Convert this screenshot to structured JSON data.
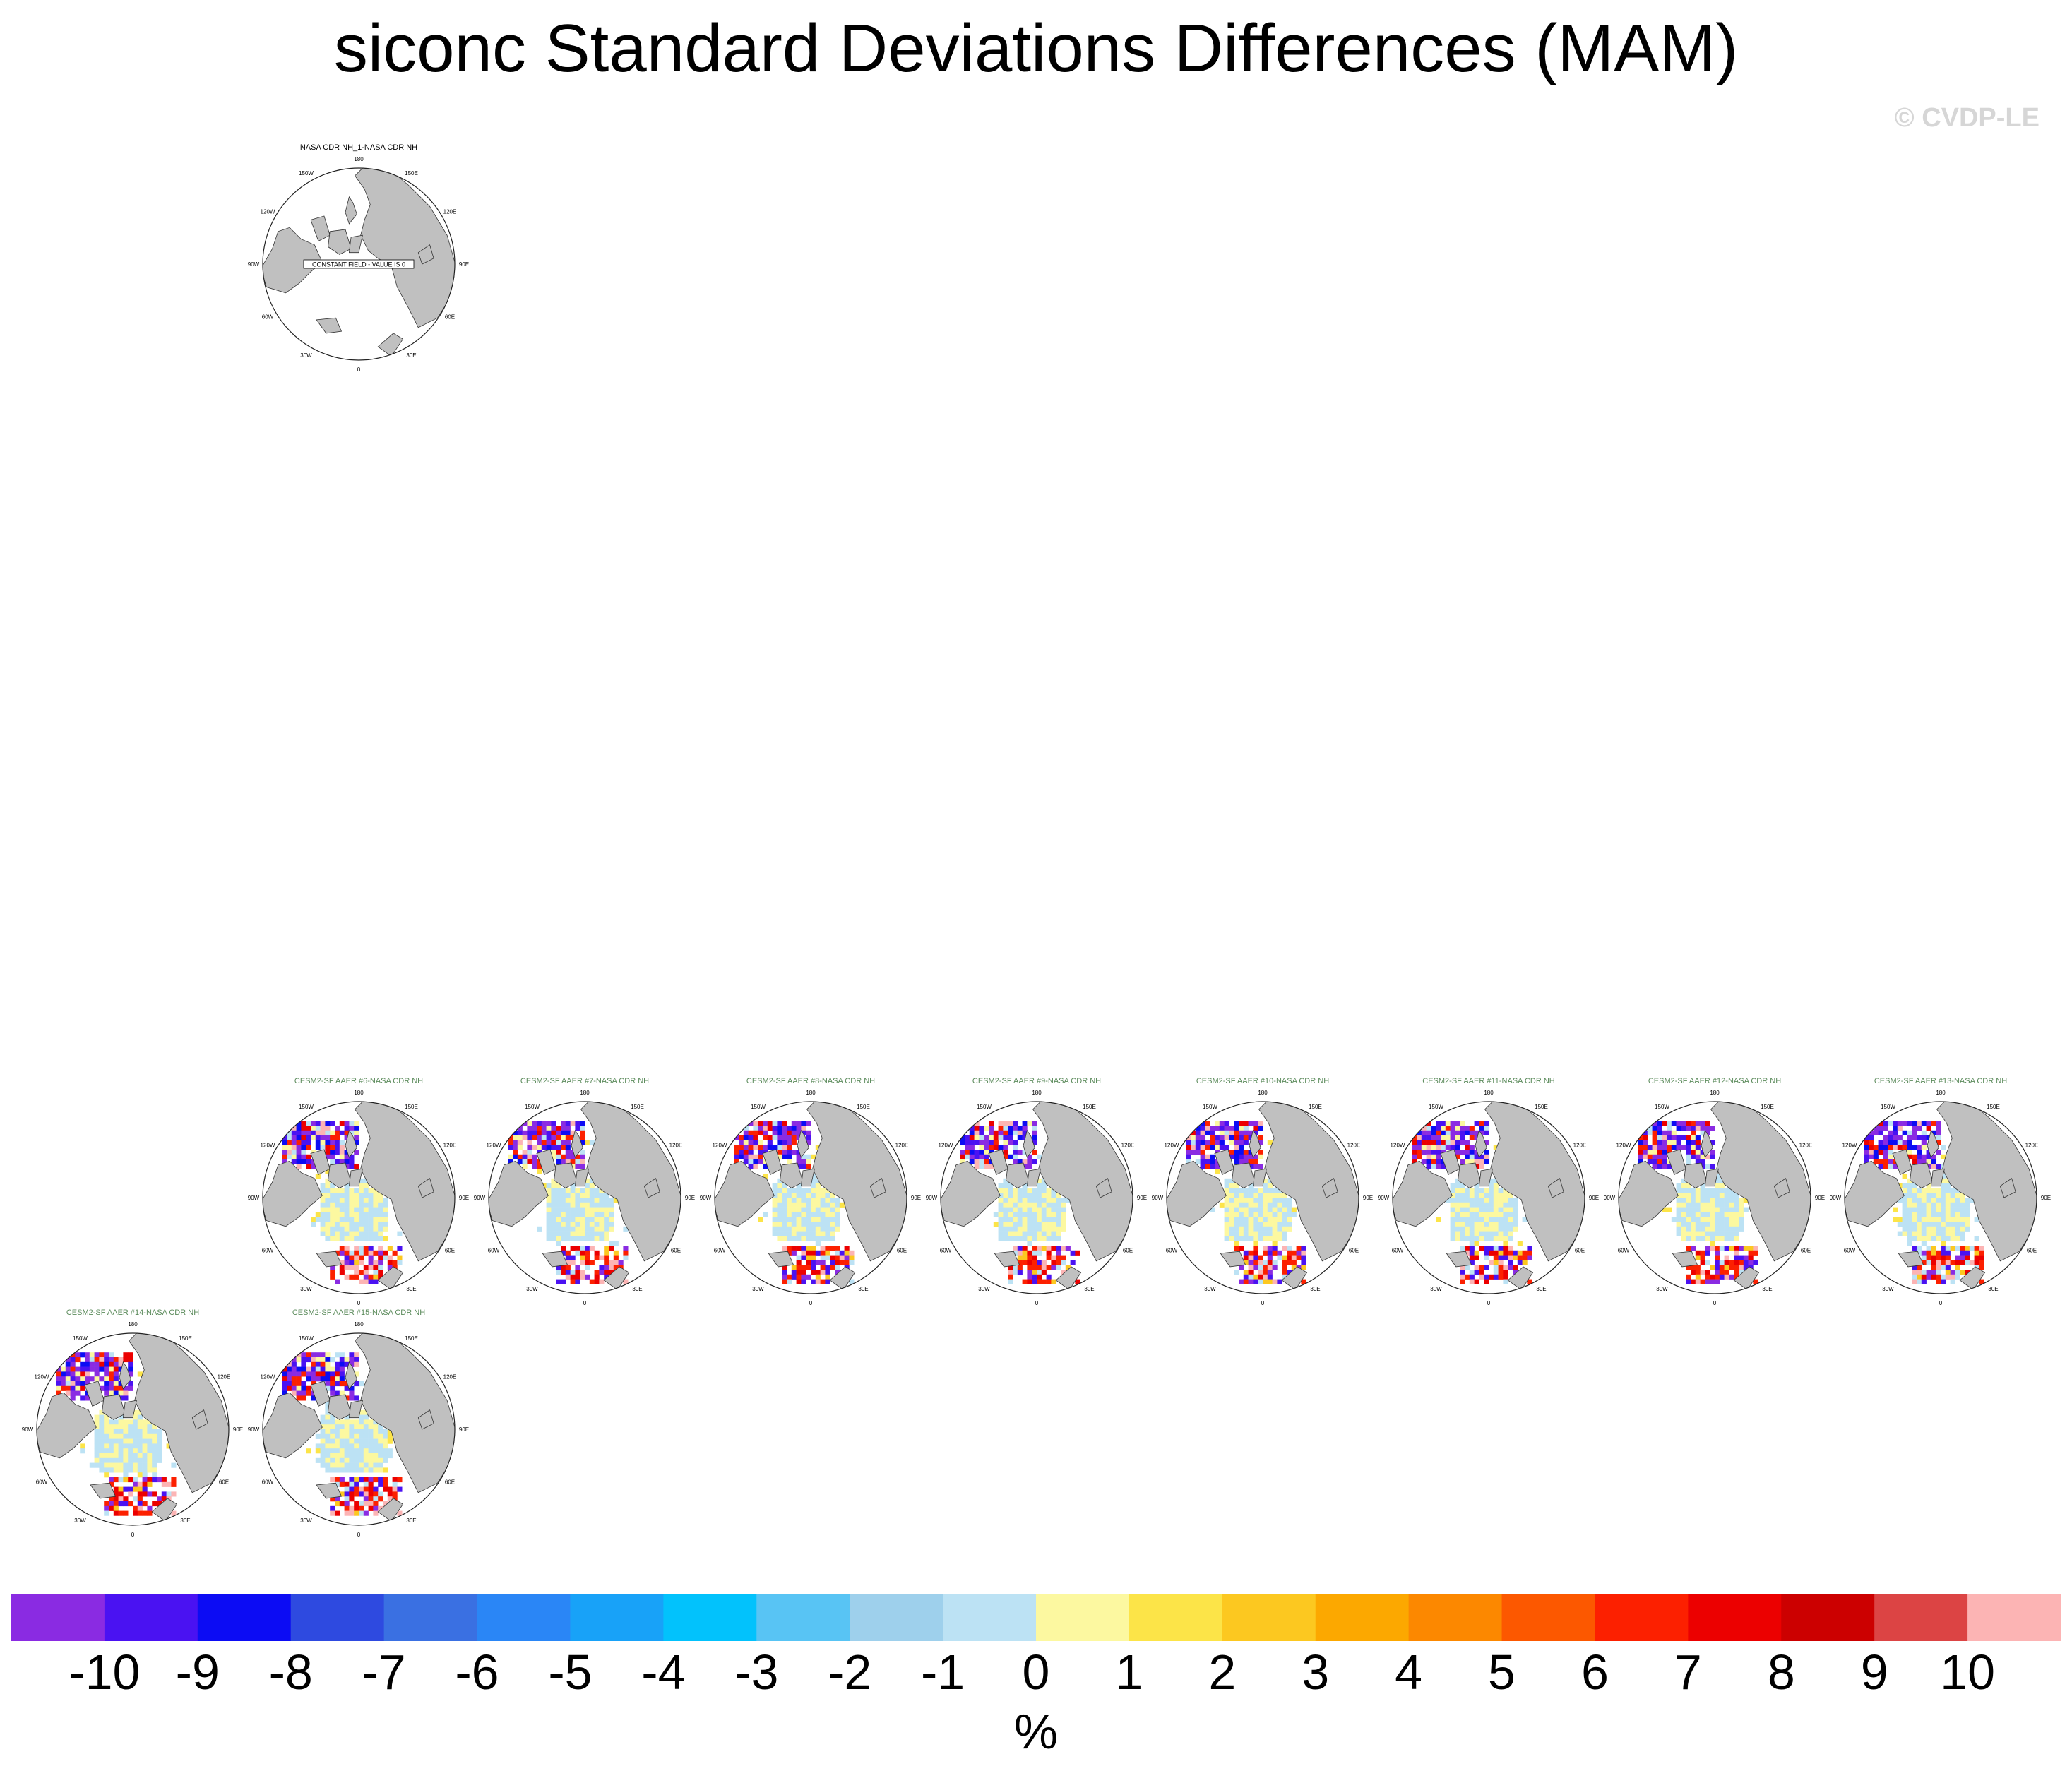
{
  "page": {
    "title": "siconc Standard Deviations Differences (MAM)",
    "copyright": "© CVDP-LE"
  },
  "panels": [
    {
      "title": "NASA CDR NH_1-NASA CDR NH",
      "note": "CONSTANT FIELD - VALUE IS 0",
      "title_color": "#000000",
      "field": "constant",
      "seed": 0
    },
    {
      "title": "CESM2-SF AAER #6-NASA CDR NH",
      "title_color": "#5a8a5a",
      "field": "diff",
      "seed": 6
    },
    {
      "title": "CESM2-SF AAER #7-NASA CDR NH",
      "title_color": "#5a8a5a",
      "field": "diff",
      "seed": 7
    },
    {
      "title": "CESM2-SF AAER #8-NASA CDR NH",
      "title_color": "#5a8a5a",
      "field": "diff",
      "seed": 8
    },
    {
      "title": "CESM2-SF AAER #9-NASA CDR NH",
      "title_color": "#5a8a5a",
      "field": "diff",
      "seed": 9
    },
    {
      "title": "CESM2-SF AAER #10-NASA CDR NH",
      "title_color": "#5a8a5a",
      "field": "diff",
      "seed": 10
    },
    {
      "title": "CESM2-SF AAER #11-NASA CDR NH",
      "title_color": "#5a8a5a",
      "field": "diff",
      "seed": 11
    },
    {
      "title": "CESM2-SF AAER #12-NASA CDR NH",
      "title_color": "#5a8a5a",
      "field": "diff",
      "seed": 12
    },
    {
      "title": "CESM2-SF AAER #13-NASA CDR NH",
      "title_color": "#5a8a5a",
      "field": "diff",
      "seed": 13
    },
    {
      "title": "CESM2-SF AAER #14-NASA CDR NH",
      "title_color": "#5a8a5a",
      "field": "diff",
      "seed": 14
    },
    {
      "title": "CESM2-SF AAER #15-NASA CDR NH",
      "title_color": "#5a8a5a",
      "field": "diff",
      "seed": 15
    }
  ],
  "map": {
    "lon_labels": [
      "180",
      "150E",
      "120E",
      "90E",
      "60E",
      "30E",
      "0",
      "30W",
      "60W",
      "90W",
      "120W",
      "150W"
    ],
    "land_color": "#c0c0c0",
    "ocean_color": "#ffffff"
  },
  "colorbar": {
    "unit": "%",
    "labels": [
      "-10",
      "-9",
      "-8",
      "-7",
      "-6",
      "-5",
      "-4",
      "-3",
      "-2",
      "-1",
      "0",
      "1",
      "2",
      "3",
      "4",
      "5",
      "6",
      "7",
      "8",
      "9",
      "10"
    ],
    "colors": [
      "#8a2be2",
      "#4a12f2",
      "#0c0cf4",
      "#2e4ae0",
      "#3a70e2",
      "#2a86f6",
      "#18a2f8",
      "#02c2fc",
      "#58c4f4",
      "#9ed0ec",
      "#bce2f4",
      "#fcf8a0",
      "#fce448",
      "#fcc820",
      "#fca800",
      "#fc8800",
      "#fc5800",
      "#fc2000",
      "#ec0000",
      "#cc0000",
      "#dc4444",
      "#fcb4b4"
    ]
  },
  "chart_data": {
    "type": "heatmap",
    "title": "siconc Standard Deviations Differences (MAM)",
    "projection": "north polar stereographic",
    "colorbar_unit": "%",
    "contour_levels": [
      -10,
      -9,
      -8,
      -7,
      -6,
      -5,
      -4,
      -3,
      -2,
      -1,
      0,
      1,
      2,
      3,
      4,
      5,
      6,
      7,
      8,
      9,
      10
    ],
    "panels": [
      "NASA CDR NH_1-NASA CDR NH",
      "CESM2-SF AAER #6-NASA CDR NH",
      "CESM2-SF AAER #7-NASA CDR NH",
      "CESM2-SF AAER #8-NASA CDR NH",
      "CESM2-SF AAER #9-NASA CDR NH",
      "CESM2-SF AAER #10-NASA CDR NH",
      "CESM2-SF AAER #11-NASA CDR NH",
      "CESM2-SF AAER #12-NASA CDR NH",
      "CESM2-SF AAER #13-NASA CDR NH",
      "CESM2-SF AAER #14-NASA CDR NH",
      "CESM2-SF AAER #15-NASA CDR NH"
    ]
  }
}
